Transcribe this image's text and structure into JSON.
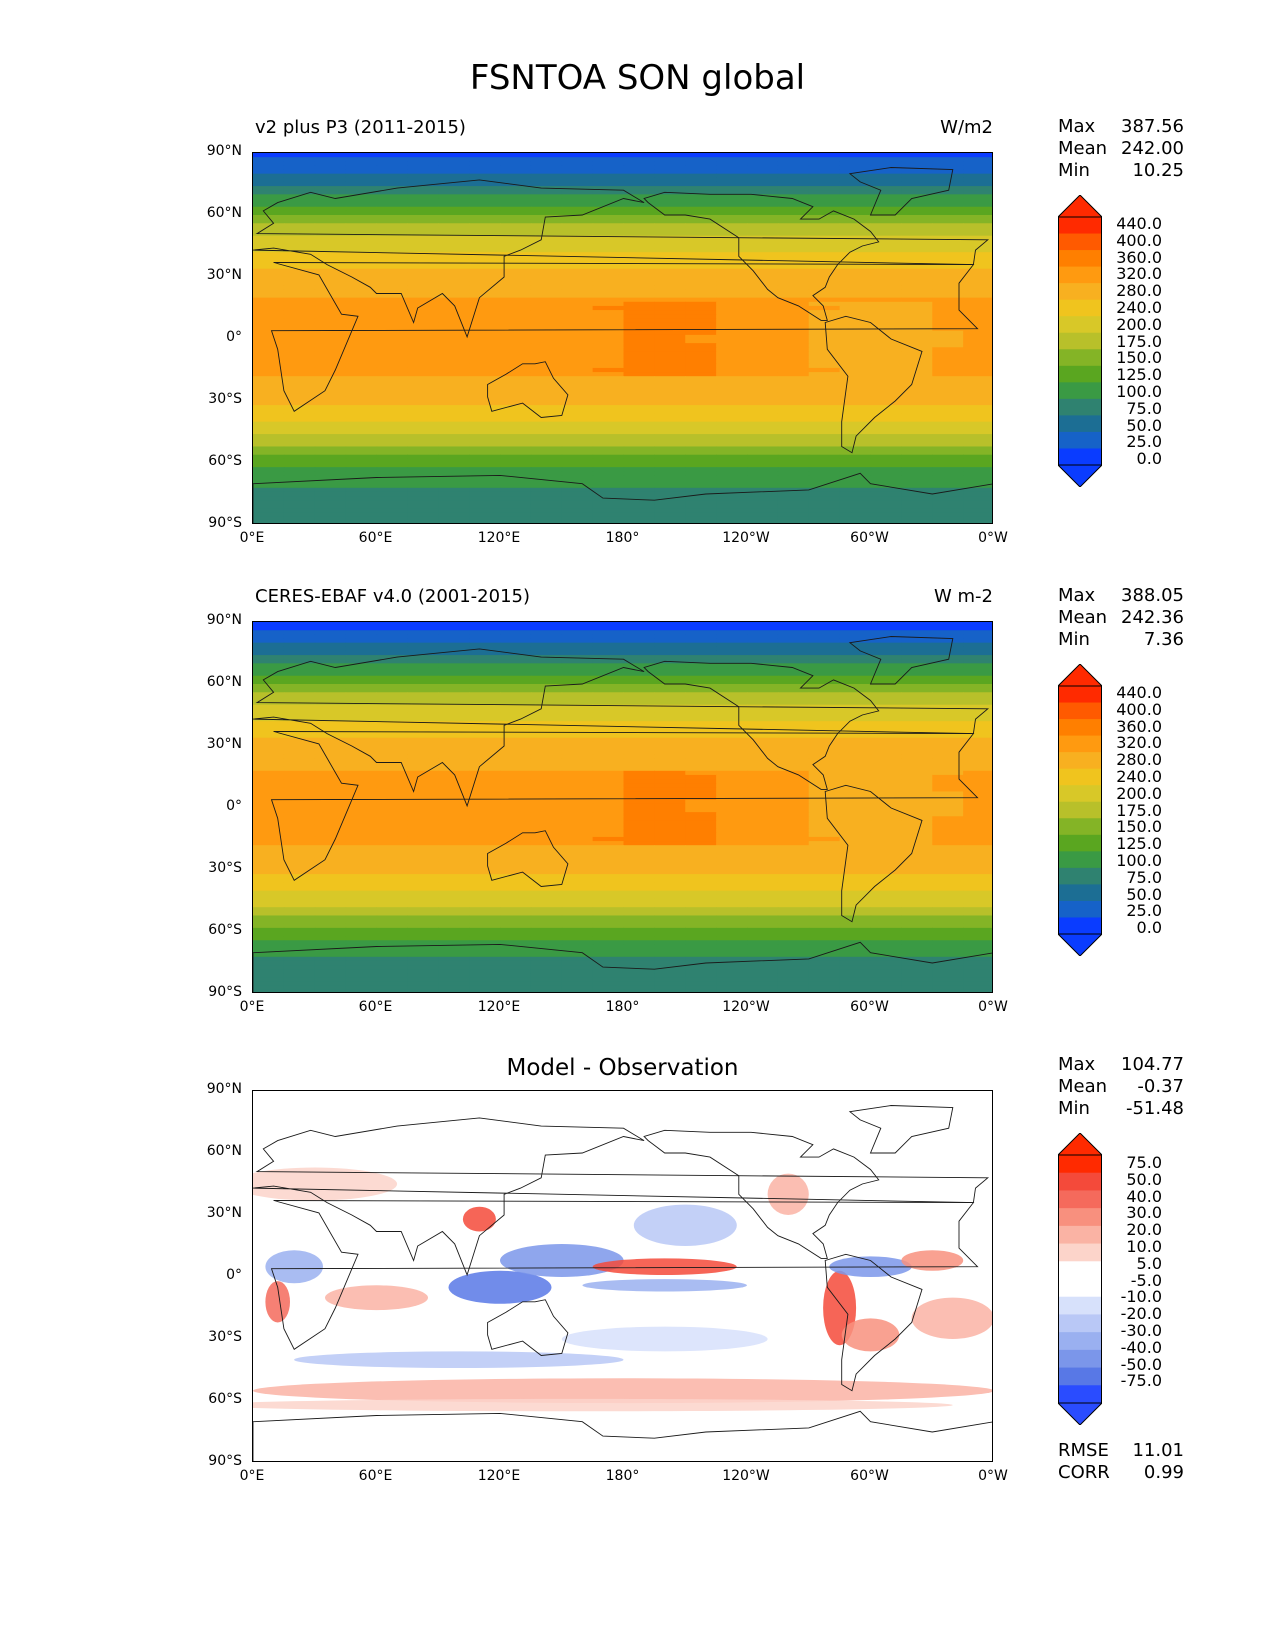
{
  "figure": {
    "title": "FSNTOA SON global"
  },
  "panels": [
    {
      "left_title": "v2 plus P3 (2011-2015)",
      "right_title": "W/m2",
      "center_title": "",
      "stats": {
        "max_label": "Max",
        "max": "387.56",
        "mean_label": "Mean",
        "mean": "242.00",
        "min_label": "Min",
        "min": "10.25"
      },
      "colorbar_levels": [
        "440.0",
        "400.0",
        "360.0",
        "320.0",
        "280.0",
        "240.0",
        "200.0",
        "175.0",
        "150.0",
        "125.0",
        "100.0",
        "75.0",
        "50.0",
        "25.0",
        "0.0"
      ]
    },
    {
      "left_title": "CERES-EBAF v4.0 (2001-2015)",
      "right_title": "W m-2",
      "center_title": "",
      "stats": {
        "max_label": "Max",
        "max": "388.05",
        "mean_label": "Mean",
        "mean": "242.36",
        "min_label": "Min",
        "min": "7.36"
      },
      "colorbar_levels": [
        "440.0",
        "400.0",
        "360.0",
        "320.0",
        "280.0",
        "240.0",
        "200.0",
        "175.0",
        "150.0",
        "125.0",
        "100.0",
        "75.0",
        "50.0",
        "25.0",
        "0.0"
      ]
    },
    {
      "left_title": "",
      "right_title": "",
      "center_title": "Model - Observation",
      "stats": {
        "max_label": "Max",
        "max": "104.77",
        "mean_label": "Mean",
        "mean": "-0.37",
        "min_label": "Min",
        "min": "-51.48"
      },
      "colorbar_levels": [
        "75.0",
        "50.0",
        "40.0",
        "30.0",
        "20.0",
        "10.0",
        "5.0",
        "-5.0",
        "-10.0",
        "-20.0",
        "-30.0",
        "-40.0",
        "-50.0",
        "-75.0"
      ],
      "footer": {
        "rmse_label": "RMSE",
        "rmse": "11.01",
        "corr_label": "CORR",
        "corr": "0.99"
      }
    }
  ],
  "axes": {
    "y_ticks": [
      "90°N",
      "60°N",
      "30°N",
      "0°",
      "30°S",
      "60°S",
      "90°S"
    ],
    "x_ticks": [
      "0°E",
      "60°E",
      "120°E",
      "180°",
      "120°W",
      "60°W",
      "0°W"
    ]
  },
  "chart_data": [
    {
      "type": "heatmap",
      "title": "v2 plus P3 (2011-2015)",
      "units": "W/m2",
      "x": "longitude",
      "y": "latitude",
      "xlim": [
        0,
        360
      ],
      "ylim": [
        -90,
        90
      ],
      "zonal_mean_profile": {
        "lat": [
          90,
          75,
          60,
          45,
          30,
          15,
          0,
          -15,
          -30,
          -45,
          -60,
          -75,
          -90
        ],
        "value": [
          15,
          70,
          150,
          230,
          300,
          330,
          320,
          330,
          290,
          210,
          130,
          90,
          85
        ]
      },
      "stats": {
        "max": 387.56,
        "mean": 242.0,
        "min": 10.25
      }
    },
    {
      "type": "heatmap",
      "title": "CERES-EBAF v4.0 (2001-2015)",
      "units": "W m-2",
      "x": "longitude",
      "y": "latitude",
      "xlim": [
        0,
        360
      ],
      "ylim": [
        -90,
        90
      ],
      "zonal_mean_profile": {
        "lat": [
          90,
          75,
          60,
          45,
          30,
          15,
          0,
          -15,
          -30,
          -45,
          -60,
          -75,
          -90
        ],
        "value": [
          12,
          70,
          150,
          230,
          295,
          325,
          320,
          330,
          290,
          215,
          135,
          90,
          85
        ]
      },
      "stats": {
        "max": 388.05,
        "mean": 242.36,
        "min": 7.36
      }
    },
    {
      "type": "heatmap",
      "title": "Model - Observation",
      "x": "longitude",
      "y": "latitude",
      "xlim": [
        0,
        360
      ],
      "ylim": [
        -90,
        90
      ],
      "stats": {
        "max": 104.77,
        "mean": -0.37,
        "min": -51.48,
        "rmse": 11.01,
        "corr": 0.99
      }
    }
  ],
  "colors": {
    "abs_scale": [
      "#ff2a00",
      "#ff5a00",
      "#ff7f00",
      "#ff9a10",
      "#f8b020",
      "#f0c41e",
      "#d8c828",
      "#b8c02a",
      "#84b426",
      "#5aa620",
      "#3a9a44",
      "#2f8270",
      "#1c6e94",
      "#1662c8",
      "#0a3cff"
    ],
    "diff_scale": [
      "#ff2a00",
      "#f44a3a",
      "#f56a5c",
      "#f8907e",
      "#fab3a4",
      "#fcd4ca",
      "#ffffff",
      "#ffffff",
      "#d7e1fb",
      "#b9c8f6",
      "#9ab0f0",
      "#7b96ea",
      "#5878e6",
      "#2a4cff"
    ]
  }
}
